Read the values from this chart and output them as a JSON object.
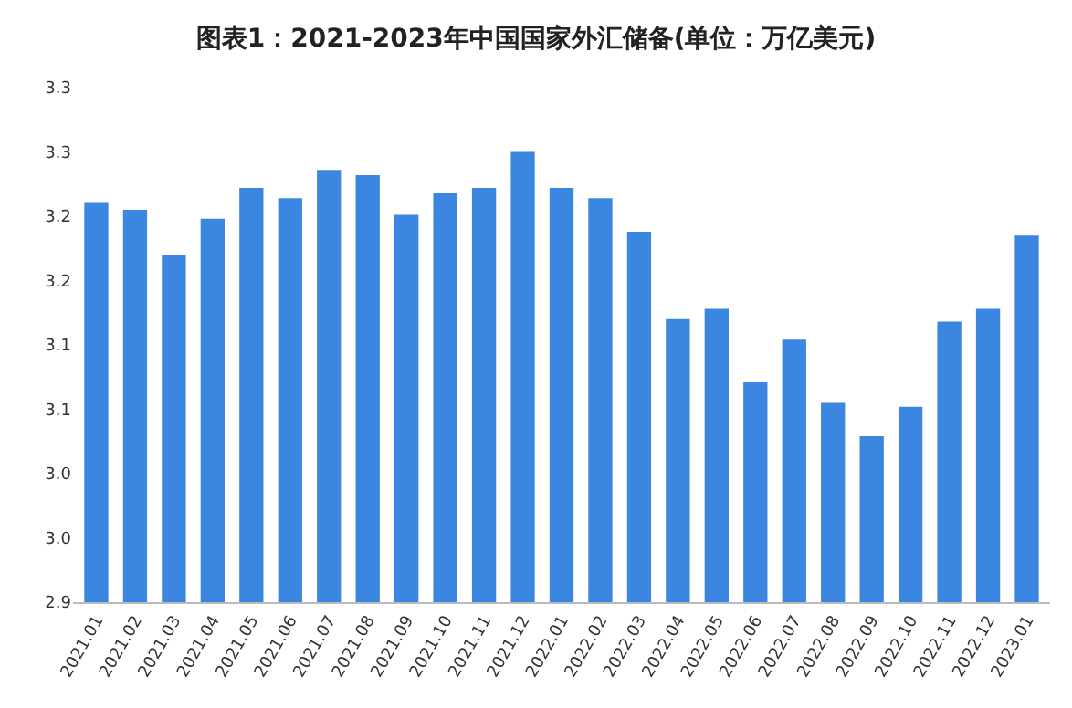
{
  "chart_data": {
    "type": "bar",
    "title": "图表1：2021-2023年中国国家外汇储备(单位：万亿美元)",
    "categories": [
      "2021.01",
      "2021.02",
      "2021.03",
      "2021.04",
      "2021.05",
      "2021.06",
      "2021.07",
      "2021.08",
      "2021.09",
      "2021.10",
      "2021.11",
      "2021.12",
      "2022.01",
      "2022.02",
      "2022.03",
      "2022.04",
      "2022.05",
      "2022.06",
      "2022.07",
      "2022.08",
      "2022.09",
      "2022.10",
      "2022.11",
      "2022.12",
      "2023.01"
    ],
    "values": [
      3.211,
      3.205,
      3.17,
      3.198,
      3.222,
      3.214,
      3.236,
      3.232,
      3.201,
      3.218,
      3.222,
      3.25,
      3.222,
      3.214,
      3.188,
      3.12,
      3.128,
      3.071,
      3.104,
      3.055,
      3.029,
      3.052,
      3.118,
      3.128,
      3.185
    ],
    "color": "#3a86e0",
    "ylim": [
      2.9,
      3.3
    ],
    "yticks": [
      2.9,
      {
        "value": 2.95,
        "label": "3.0"
      },
      {
        "value": 3.0,
        "label": "3.0"
      },
      {
        "value": 3.05,
        "label": "3.1"
      },
      {
        "value": 3.1,
        "label": "3.1"
      },
      {
        "value": 3.15,
        "label": "3.2"
      },
      {
        "value": 3.2,
        "label": "3.2"
      },
      {
        "value": 3.25,
        "label": "3.3"
      },
      {
        "value": 3.3,
        "label": "3.3"
      }
    ],
    "grid": false
  }
}
